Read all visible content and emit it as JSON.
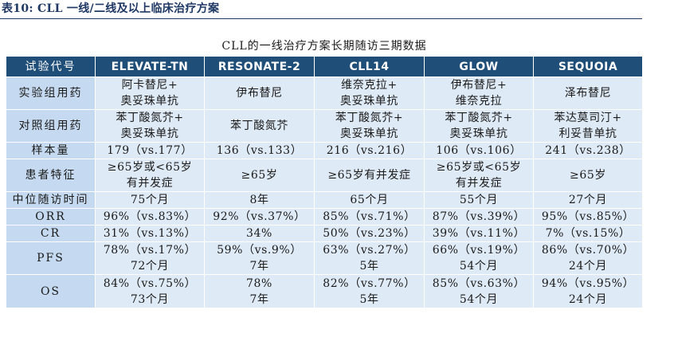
{
  "caption": "表10:  CLL 一线/二线及以上临床治疗方案",
  "table_title": "CLL的一线治疗方案长期随访三期数据",
  "header": {
    "label": "试验代号",
    "trials": [
      "ELEVATE-TN",
      "RESONATE-2",
      "CLL14",
      "GLOW",
      "SEQUOIA"
    ]
  },
  "rows": [
    {
      "label": "实验组用药",
      "cells": [
        [
          "阿卡替尼+",
          "奥妥珠单抗"
        ],
        [
          "伊布替尼"
        ],
        [
          "维奈克拉+",
          "奥妥珠单抗"
        ],
        [
          "伊布替尼+",
          "维奈克拉"
        ],
        [
          "泽布替尼"
        ]
      ]
    },
    {
      "label": "对照组用药",
      "cells": [
        [
          "苯丁酸氮芥+",
          "奥妥珠单抗"
        ],
        [
          "苯丁酸氮芥"
        ],
        [
          "苯丁酸氮芥+",
          "奥妥珠单抗"
        ],
        [
          "苯丁酸氮芥+",
          "奥妥珠单抗"
        ],
        [
          "苯达莫司汀+",
          "利妥昔单抗"
        ]
      ]
    },
    {
      "label": "样本量",
      "cells": [
        [
          "179（vs.177）"
        ],
        [
          "136（vs.133）"
        ],
        [
          "216（vs.216）"
        ],
        [
          "106（vs.106）"
        ],
        [
          "241（vs.238）"
        ]
      ]
    },
    {
      "label": "患者特征",
      "cells": [
        [
          "≥65岁或<65岁",
          "有并发症"
        ],
        [
          "≥65岁"
        ],
        [
          "≥65岁有并发症"
        ],
        [
          "≥65岁或<65岁",
          "有并发症"
        ],
        [
          "≥65岁"
        ]
      ]
    },
    {
      "label": "中位随访时间",
      "cells": [
        [
          "75个月"
        ],
        [
          "8年"
        ],
        [
          "65个月"
        ],
        [
          "55个月"
        ],
        [
          "27个月"
        ]
      ]
    },
    {
      "label": "ORR",
      "cells": [
        [
          "96%（vs.83%）"
        ],
        [
          "92%（vs.37%）"
        ],
        [
          "85%（vs.71%）"
        ],
        [
          "87%（vs.39%）"
        ],
        [
          "95%（vs.85%）"
        ]
      ]
    },
    {
      "label": "CR",
      "cells": [
        [
          "31%（vs.13%）"
        ],
        [
          "34%"
        ],
        [
          "50%（vs.23%）"
        ],
        [
          "39%（vs.11%）"
        ],
        [
          "7%（vs.15%）"
        ]
      ]
    },
    {
      "label": "PFS",
      "cells": [
        [
          "78%（vs.17%）",
          "72个月"
        ],
        [
          "59%（vs.9%）",
          "7年"
        ],
        [
          "63%（vs.27%）",
          "5年"
        ],
        [
          "66%（vs.19%）",
          "54个月"
        ],
        [
          "86%（vs.70%）",
          "24个月"
        ]
      ]
    },
    {
      "label": "OS",
      "cells": [
        [
          "84%（vs.75%）",
          "73个月"
        ],
        [
          "78%",
          "7年"
        ],
        [
          "82%（vs.77%）",
          "5年"
        ],
        [
          "85%（vs.63%）",
          "54个月"
        ],
        [
          "94%（vs.95%）",
          "24个月"
        ]
      ]
    }
  ]
}
